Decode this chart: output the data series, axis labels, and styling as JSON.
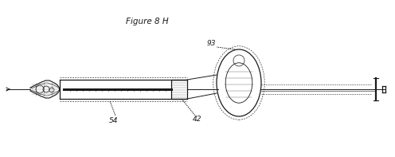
{
  "bg_color": "#ffffff",
  "line_color": "#1a1a1a",
  "title": "Figure 8 H",
  "label_54": "54",
  "label_42": "42",
  "label_93": "93",
  "figsize": [
    4.96,
    1.97
  ],
  "dpi": 100
}
